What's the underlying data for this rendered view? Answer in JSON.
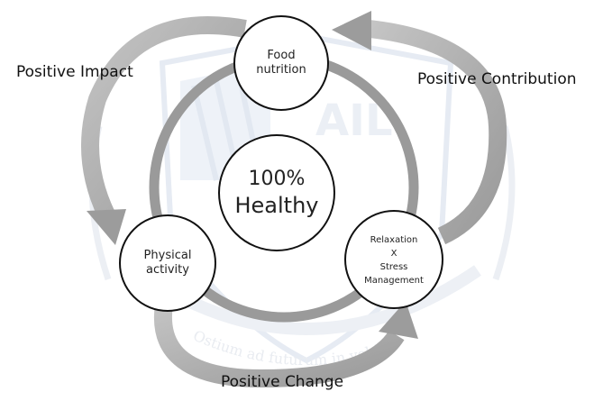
{
  "center": {
    "percent": "100%",
    "label": "Healthy"
  },
  "nodes": {
    "food": {
      "line1": "Food",
      "line2": "nutrition"
    },
    "physical": {
      "line1": "Physical",
      "line2": "activity"
    },
    "relaxation": {
      "line1": "Relaxation",
      "line2": "X",
      "line3": "Stress",
      "line4": "Management"
    }
  },
  "labels": {
    "impact": "Positive Impact",
    "contribution": "Positive Contribution",
    "change": "Positive Change"
  },
  "watermark": {
    "logo_text": "AIL",
    "motto": "Ostium ad futurum in vobis"
  },
  "colors": {
    "arrow": "#a8a8a8",
    "arrow_dark": "#8c8c8c",
    "ring": "#9a9a9a",
    "circle_stroke": "#111111",
    "watermark": "#e6ebf3"
  }
}
